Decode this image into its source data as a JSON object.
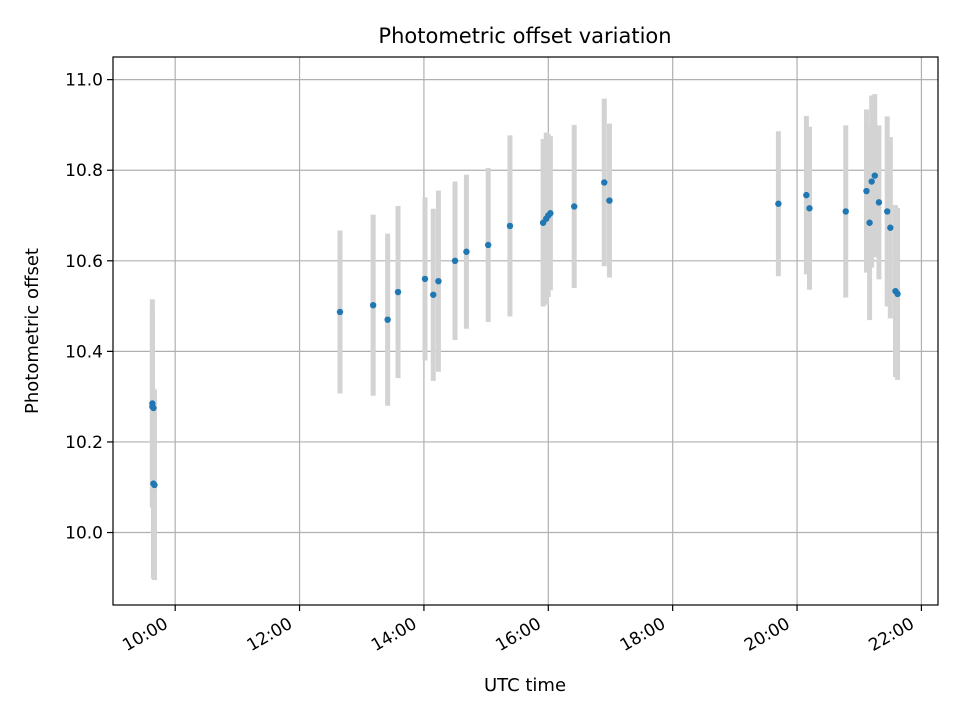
{
  "chart_data": {
    "type": "scatter",
    "title": "Photometric offset variation",
    "xlabel": "UTC time",
    "ylabel": "Photometric offset",
    "x_ticks": [
      "10:00",
      "12:00",
      "14:00",
      "16:00",
      "18:00",
      "20:00",
      "22:00"
    ],
    "y_ticks": [
      "10.0",
      "10.2",
      "10.4",
      "10.6",
      "10.8",
      "11.0"
    ],
    "xlim": [
      "09:00",
      "22:16"
    ],
    "ylim": [
      9.84,
      11.05
    ],
    "grid": true,
    "legend": "none",
    "colors": {
      "points": "#1f77b4",
      "errorbars": "#d3d3d3",
      "grid": "#b0b0b0"
    },
    "points": [
      {
        "x": "09:38",
        "y": 10.285,
        "err": 0.23
      },
      {
        "x": "09:38",
        "y": 10.278,
        "err": 0.22
      },
      {
        "x": "09:39",
        "y": 10.275,
        "err": 0.04
      },
      {
        "x": "09:39",
        "y": 10.108,
        "err": 0.21
      },
      {
        "x": "09:40",
        "y": 10.105,
        "err": 0.21
      },
      {
        "x": "12:39",
        "y": 10.487,
        "err": 0.18
      },
      {
        "x": "13:11",
        "y": 10.502,
        "err": 0.2
      },
      {
        "x": "13:25",
        "y": 10.47,
        "err": 0.19
      },
      {
        "x": "13:35",
        "y": 10.531,
        "err": 0.19
      },
      {
        "x": "14:01",
        "y": 10.56,
        "err": 0.18
      },
      {
        "x": "14:09",
        "y": 10.525,
        "err": 0.19
      },
      {
        "x": "14:14",
        "y": 10.555,
        "err": 0.2
      },
      {
        "x": "14:30",
        "y": 10.6,
        "err": 0.175
      },
      {
        "x": "14:41",
        "y": 10.62,
        "err": 0.17
      },
      {
        "x": "15:02",
        "y": 10.635,
        "err": 0.17
      },
      {
        "x": "15:23",
        "y": 10.677,
        "err": 0.2
      },
      {
        "x": "15:55",
        "y": 10.684,
        "err": 0.185
      },
      {
        "x": "15:58",
        "y": 10.693,
        "err": 0.19
      },
      {
        "x": "16:00",
        "y": 10.7,
        "err": 0.18
      },
      {
        "x": "16:02",
        "y": 10.705,
        "err": 0.17
      },
      {
        "x": "16:25",
        "y": 10.72,
        "err": 0.18
      },
      {
        "x": "16:54",
        "y": 10.773,
        "err": 0.185
      },
      {
        "x": "16:59",
        "y": 10.733,
        "err": 0.17
      },
      {
        "x": "19:42",
        "y": 10.726,
        "err": 0.16
      },
      {
        "x": "20:09",
        "y": 10.745,
        "err": 0.175
      },
      {
        "x": "20:12",
        "y": 10.716,
        "err": 0.18
      },
      {
        "x": "20:47",
        "y": 10.709,
        "err": 0.19
      },
      {
        "x": "21:07",
        "y": 10.754,
        "err": 0.18
      },
      {
        "x": "21:10",
        "y": 10.684,
        "err": 0.215
      },
      {
        "x": "21:12",
        "y": 10.775,
        "err": 0.19
      },
      {
        "x": "21:15",
        "y": 10.788,
        "err": 0.18
      },
      {
        "x": "21:19",
        "y": 10.729,
        "err": 0.17
      },
      {
        "x": "21:27",
        "y": 10.709,
        "err": 0.21
      },
      {
        "x": "21:30",
        "y": 10.673,
        "err": 0.2
      },
      {
        "x": "21:35",
        "y": 10.533,
        "err": 0.19
      },
      {
        "x": "21:37",
        "y": 10.527,
        "err": 0.19
      }
    ]
  }
}
